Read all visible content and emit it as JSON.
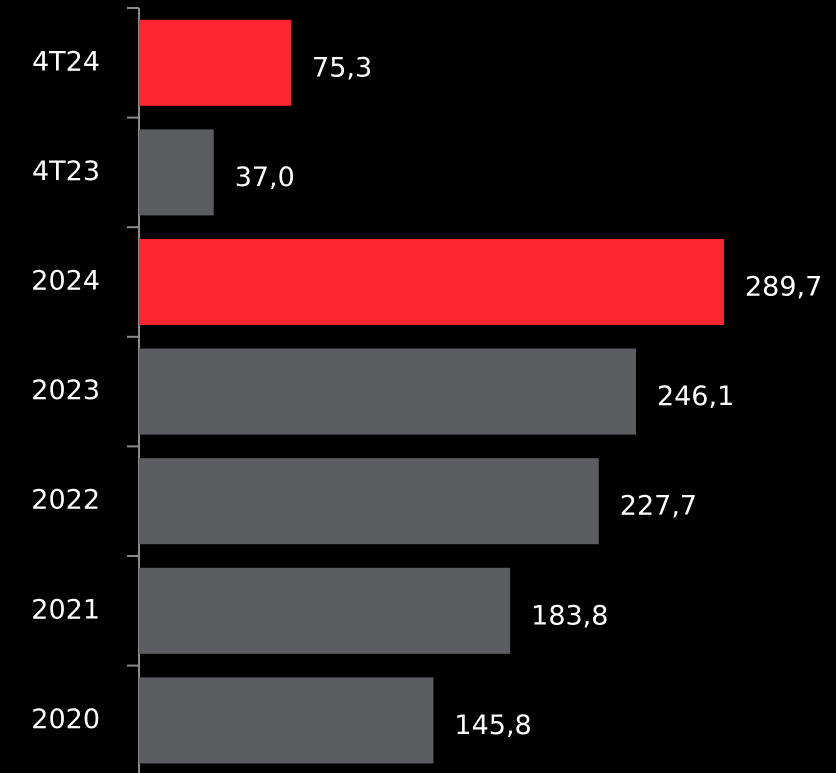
{
  "chart_data": {
    "type": "bar",
    "orientation": "horizontal",
    "categories": [
      "4T24",
      "4T23",
      "2024",
      "2023",
      "2022",
      "2021",
      "2020"
    ],
    "values": [
      75.3,
      37.0,
      289.7,
      246.1,
      227.7,
      183.8,
      145.8
    ],
    "value_labels": [
      "75,3",
      "37,0",
      "289,7",
      "246,1",
      "227,7",
      "183,8",
      "145,8"
    ],
    "colors": [
      "#fc2530",
      "#5c5d61",
      "#fc2530",
      "#5c5d61",
      "#5c5d61",
      "#5c5d61",
      "#5c5d61"
    ]
  }
}
